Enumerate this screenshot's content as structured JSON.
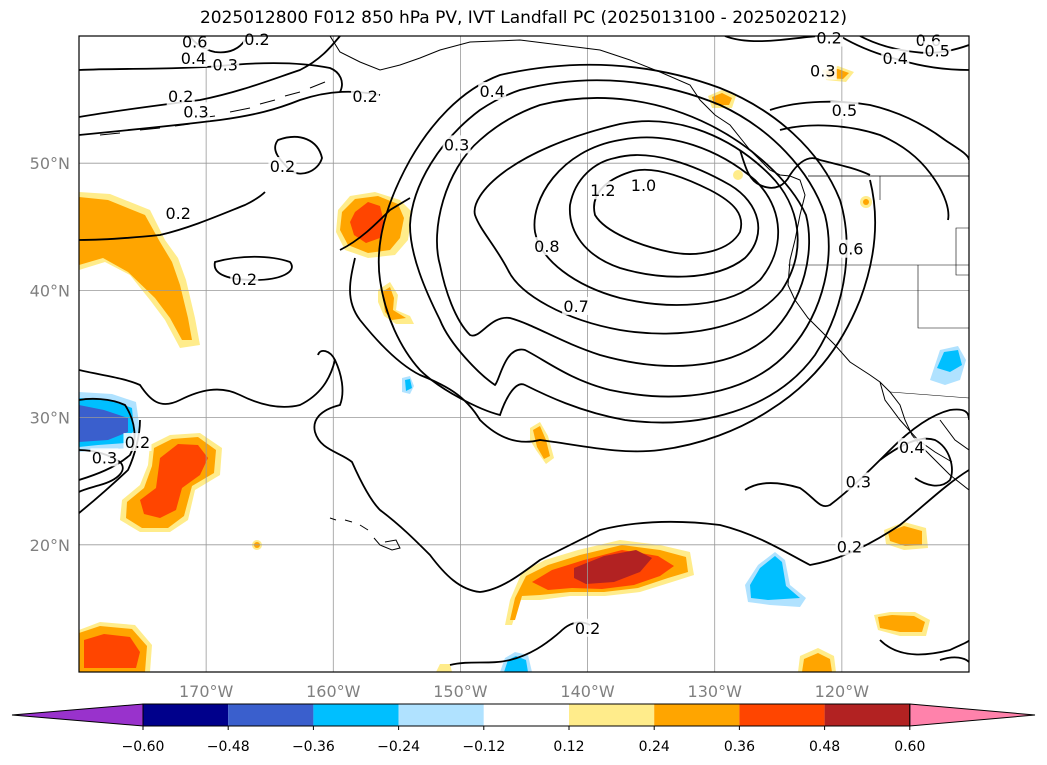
{
  "title": "2025012800 F012 850 hPa PV, IVT Landfall PC (2025013100 - 2025020212)",
  "map": {
    "lon_range": [
      -180,
      -110
    ],
    "lat_range": [
      10,
      60
    ],
    "lon_ticks": [
      {
        "value": -170,
        "label": "170°W"
      },
      {
        "value": -160,
        "label": "160°W"
      },
      {
        "value": -150,
        "label": "150°W"
      },
      {
        "value": -140,
        "label": "140°W"
      },
      {
        "value": -130,
        "label": "130°W"
      },
      {
        "value": -120,
        "label": "120°W"
      }
    ],
    "lat_ticks": [
      {
        "value": 20,
        "label": "20°N"
      },
      {
        "value": 30,
        "label": "30°N"
      },
      {
        "value": 40,
        "label": "40°N"
      },
      {
        "value": 50,
        "label": "50°N"
      }
    ],
    "grid": true
  },
  "contour_labels": [
    {
      "text": "0.6",
      "lon": -170.9,
      "lat": 59.5
    },
    {
      "text": "0.4",
      "lon": -171.0,
      "lat": 58.2
    },
    {
      "text": "0.3",
      "lon": -168.5,
      "lat": 57.7
    },
    {
      "text": "0.2",
      "lon": -172.0,
      "lat": 55.2
    },
    {
      "text": "0.3",
      "lon": -170.8,
      "lat": 54.0
    },
    {
      "text": "0.2",
      "lon": -157.5,
      "lat": 55.2
    },
    {
      "text": "0.2",
      "lon": -166.0,
      "lat": 59.7
    },
    {
      "text": "0.2",
      "lon": -172.2,
      "lat": 46.0
    },
    {
      "text": "0.4",
      "lon": -147.5,
      "lat": 55.6
    },
    {
      "text": "0.3",
      "lon": -150.3,
      "lat": 51.4
    },
    {
      "text": "0.2",
      "lon": -164.0,
      "lat": 49.7
    },
    {
      "text": "0.2",
      "lon": -167.0,
      "lat": 40.8
    },
    {
      "text": "1.2",
      "lon": -138.8,
      "lat": 47.8
    },
    {
      "text": "1.0",
      "lon": -135.6,
      "lat": 48.2
    },
    {
      "text": "0.8",
      "lon": -143.2,
      "lat": 43.4
    },
    {
      "text": "0.7",
      "lon": -140.9,
      "lat": 38.7
    },
    {
      "text": "0.5",
      "lon": -119.8,
      "lat": 54.1
    },
    {
      "text": "0.6",
      "lon": -119.3,
      "lat": 43.2
    },
    {
      "text": "0.3",
      "lon": -121.5,
      "lat": 57.2
    },
    {
      "text": "0.2",
      "lon": -121.0,
      "lat": 59.8
    },
    {
      "text": "0.6",
      "lon": -113.2,
      "lat": 59.6
    },
    {
      "text": "0.5",
      "lon": -112.5,
      "lat": 58.8
    },
    {
      "text": "0.4",
      "lon": -115.8,
      "lat": 58.2
    },
    {
      "text": "0.3",
      "lon": -178.0,
      "lat": 26.8
    },
    {
      "text": "0.2",
      "lon": -175.4,
      "lat": 28.0
    },
    {
      "text": "0.3",
      "lon": -118.7,
      "lat": 24.9
    },
    {
      "text": "0.4",
      "lon": -114.5,
      "lat": 27.6
    },
    {
      "text": "0.2",
      "lon": -119.4,
      "lat": 19.8
    },
    {
      "text": "0.2",
      "lon": -140.0,
      "lat": 13.4
    }
  ],
  "colorbar": {
    "ticks": [
      "−0.60",
      "−0.48",
      "−0.36",
      "−0.24",
      "−0.12",
      "0.12",
      "0.24",
      "0.36",
      "0.48",
      "0.60"
    ],
    "colors": [
      "#9932cc",
      "#00008b",
      "#3a5fcd",
      "#00bfff",
      "#b0e2ff",
      "#ffffff",
      "#ffec8b",
      "#ffa500",
      "#ff4500",
      "#b22222",
      "#ff82ab"
    ]
  }
}
